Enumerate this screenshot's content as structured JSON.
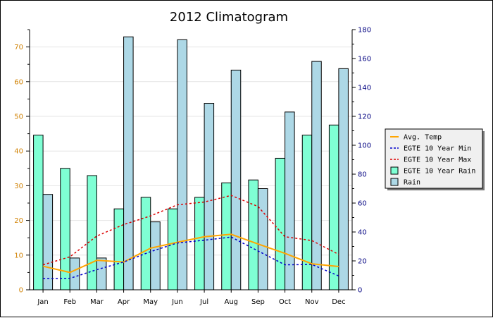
{
  "chart_data": {
    "type": "bar",
    "title": "2012 Climatogram",
    "categories": [
      "Jan",
      "Feb",
      "Mar",
      "Apr",
      "May",
      "Jun",
      "Jul",
      "Aug",
      "Sep",
      "Oct",
      "Nov",
      "Dec"
    ],
    "left_axis": {
      "ylim": [
        0,
        75
      ],
      "ticks": [
        0,
        10,
        20,
        30,
        40,
        50,
        60,
        70
      ],
      "color": "#d08000"
    },
    "right_axis": {
      "ylim": [
        0,
        180
      ],
      "ticks": [
        0,
        20,
        40,
        60,
        80,
        100,
        120,
        140,
        160,
        180
      ],
      "color": "#000080"
    },
    "grid": true,
    "legend_position": "right",
    "series": [
      {
        "name": "Avg. Temp",
        "kind": "line",
        "axis": "left",
        "color": "#ffa500",
        "style": "solid",
        "values": [
          6.8,
          5.0,
          8.5,
          8.0,
          12.0,
          13.7,
          15.3,
          16.0,
          13.2,
          10.5,
          7.5,
          6.7
        ]
      },
      {
        "name": "EGTE 10 Year Min",
        "kind": "line",
        "axis": "left",
        "color": "#0000cc",
        "style": "dashed",
        "values": [
          3.2,
          3.3,
          5.8,
          8.0,
          11.0,
          13.5,
          14.3,
          15.2,
          11.2,
          7.2,
          7.3,
          4.0
        ]
      },
      {
        "name": "EGTE 10 Year Max",
        "kind": "line",
        "axis": "left",
        "color": "#dd0000",
        "style": "dashed",
        "values": [
          7.2,
          9.5,
          15.5,
          18.8,
          21.3,
          24.5,
          25.3,
          27.2,
          24.0,
          15.3,
          14.2,
          10.2
        ]
      },
      {
        "name": "EGTE 10 Year Rain",
        "kind": "bar",
        "axis": "right",
        "color": "#7fffd4",
        "values": [
          107,
          84,
          79,
          56,
          64,
          56,
          64,
          74,
          76,
          91,
          107,
          114
        ]
      },
      {
        "name": "Rain",
        "kind": "bar",
        "axis": "right",
        "color": "#add8e6",
        "values": [
          66,
          22,
          22,
          175,
          47,
          173,
          129,
          152,
          70,
          123,
          158,
          153
        ]
      }
    ]
  }
}
